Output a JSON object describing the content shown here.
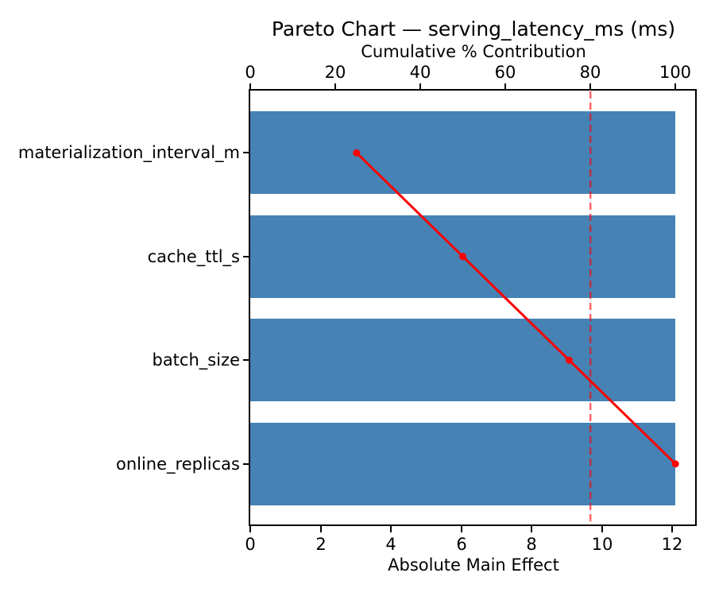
{
  "chart_data": {
    "type": "bar",
    "subtype": "pareto",
    "orientation": "horizontal",
    "title": "Pareto Chart — serving_latency_ms (ms)",
    "categories": [
      "materialization_interval_m",
      "cache_ttl_s",
      "batch_size",
      "online_replicas"
    ],
    "series": [
      {
        "name": "Absolute Main Effect",
        "type": "bar",
        "values": [
          12.1,
          12.1,
          12.1,
          12.1
        ],
        "color": "#4682b4"
      },
      {
        "name": "Cumulative % Contribution",
        "type": "line",
        "values": [
          25.0,
          50.0,
          75.0,
          100.0
        ],
        "color": "#ff0000"
      }
    ],
    "threshold_line": {
      "value": 80,
      "axis": "top",
      "style": "dashed",
      "color": "#ff0000",
      "opacity": 0.6
    },
    "bottom_axis": {
      "label": "Absolute Main Effect",
      "ticks": [
        0,
        2,
        4,
        6,
        8,
        10,
        12
      ],
      "range": [
        0,
        12.7
      ]
    },
    "top_axis": {
      "label": "Cumulative % Contribution",
      "ticks": [
        0,
        20,
        40,
        60,
        80,
        100
      ],
      "range": [
        0,
        105
      ]
    },
    "grid": false,
    "legend": "none",
    "colors": {
      "bar": "#4682b4",
      "line": "#ff0000",
      "axis": "#000000",
      "background": "#ffffff"
    }
  }
}
